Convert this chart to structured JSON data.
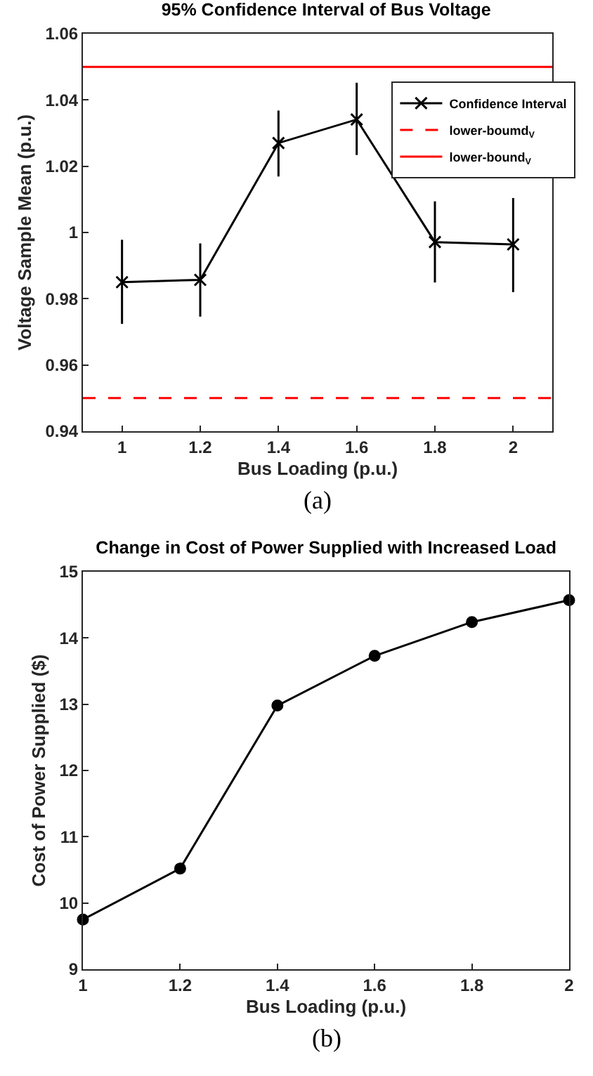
{
  "chart_data": [
    {
      "type": "line",
      "title": "95% Confidence Interval of Bus Voltage",
      "xlabel": "Bus Loading (p.u.)",
      "ylabel": "Voltage Sample Mean (p.u.)",
      "x": [
        1,
        1.2,
        1.4,
        1.6,
        1.8,
        2
      ],
      "series": [
        {
          "name": "Confidence Interval",
          "color": "#000000",
          "values": [
            0.985,
            0.9857,
            1.027,
            1.0341,
            0.9971,
            0.9964
          ],
          "errors": [
            [
              0.9724,
              0.9978
            ],
            [
              0.9746,
              0.9967
            ],
            [
              1.0169,
              1.0368
            ],
            [
              1.0234,
              1.0452
            ],
            [
              0.9849,
              1.0094
            ],
            [
              0.982,
              1.0104
            ]
          ]
        }
      ],
      "marker": "cross",
      "line_style": "solid",
      "xlim": [
        0.9,
        2.1
      ],
      "xticks": [
        1,
        1.2,
        1.4,
        1.6,
        1.8,
        2
      ],
      "ylim": [
        0.94,
        1.06
      ],
      "yticks": [
        0.94,
        0.96,
        0.98,
        1,
        1.02,
        1.04,
        1.06
      ],
      "ref_lines": [
        {
          "axis": "y",
          "value": 0.95,
          "label": "lower-boumd$_{V}$",
          "color": "#ff0000",
          "line_style": "dashed"
        },
        {
          "axis": "y",
          "value": 1.05,
          "label": "lower-bound$_{V}$",
          "color": "#ff0000",
          "line_style": "solid"
        }
      ],
      "legend": "top right",
      "annotations": [
        "(a)"
      ]
    },
    {
      "type": "line",
      "title": "Change in Cost of Power Supplied with Increased Load",
      "xlabel": "Bus Loading (p.u.)",
      "ylabel": "Cost of Power Supplied ($)",
      "x": [
        1,
        1.2,
        1.4,
        1.6,
        1.8,
        2
      ],
      "series": [
        {
          "color": "#000000",
          "values": [
            9.75,
            10.52,
            12.98,
            13.73,
            14.24,
            14.57
          ]
        }
      ],
      "marker": "circle",
      "line_style": "solid",
      "xlim": [
        1,
        2
      ],
      "xticks": [
        1,
        1.2,
        1.4,
        1.6,
        1.8,
        2
      ],
      "ylim": [
        9,
        15
      ],
      "yticks": [
        9,
        10,
        11,
        12,
        13,
        14,
        15
      ],
      "annotations": [
        "(b)"
      ]
    }
  ]
}
